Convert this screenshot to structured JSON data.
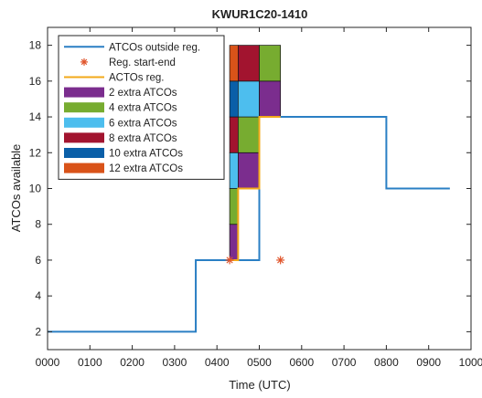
{
  "chart_data": {
    "type": "line",
    "title": "KWUR1C20-1410",
    "xlabel": "Time (UTC)",
    "ylabel": "ATCOs available",
    "xlim": [
      0,
      1000
    ],
    "ylim": [
      1,
      19
    ],
    "xticks": [
      "0000",
      "0100",
      "0200",
      "0300",
      "0400",
      "0500",
      "0600",
      "0700",
      "0800",
      "0900",
      "1000"
    ],
    "yticks": [
      2,
      4,
      6,
      8,
      10,
      12,
      14,
      16,
      18
    ],
    "grid": false,
    "legend_position": "top-left",
    "series": [
      {
        "name": "ATCOs outside reg.",
        "kind": "step-line",
        "color": "#2a7fc4",
        "points": [
          [
            0,
            2
          ],
          [
            350,
            2
          ],
          [
            350,
            6
          ],
          [
            500,
            6
          ],
          [
            500,
            14
          ],
          [
            800,
            14
          ],
          [
            800,
            10
          ],
          [
            950,
            10
          ]
        ]
      },
      {
        "name": "Reg. start-end",
        "kind": "marker",
        "marker": "asterisk",
        "color": "#e0542a",
        "points": [
          [
            430,
            6
          ],
          [
            550,
            6
          ]
        ]
      },
      {
        "name": "ACTOs reg.",
        "kind": "step-line",
        "color": "#f2a91a",
        "points": [
          [
            430,
            6
          ],
          [
            450,
            6
          ],
          [
            450,
            10
          ],
          [
            500,
            10
          ],
          [
            500,
            14
          ],
          [
            550,
            14
          ]
        ]
      }
    ],
    "extra_atcos": {
      "legend": [
        {
          "label": "2 extra ATCOs",
          "color": "#7b2d8e"
        },
        {
          "label": "4 extra ATCOs",
          "color": "#77ac30"
        },
        {
          "label": "6 extra ATCOs",
          "color": "#4dbeee"
        },
        {
          "label": "8 extra ATCOs",
          "color": "#a2142f"
        },
        {
          "label": "10 extra ATCOs",
          "color": "#0a5fa8"
        },
        {
          "label": "12 extra ATCOs",
          "color": "#d95319"
        }
      ],
      "periods": [
        {
          "start": 430,
          "end": 450,
          "base": 6
        },
        {
          "start": 450,
          "end": 500,
          "base": 10
        },
        {
          "start": 500,
          "end": 550,
          "base": 14
        }
      ],
      "max_total": 18
    }
  }
}
